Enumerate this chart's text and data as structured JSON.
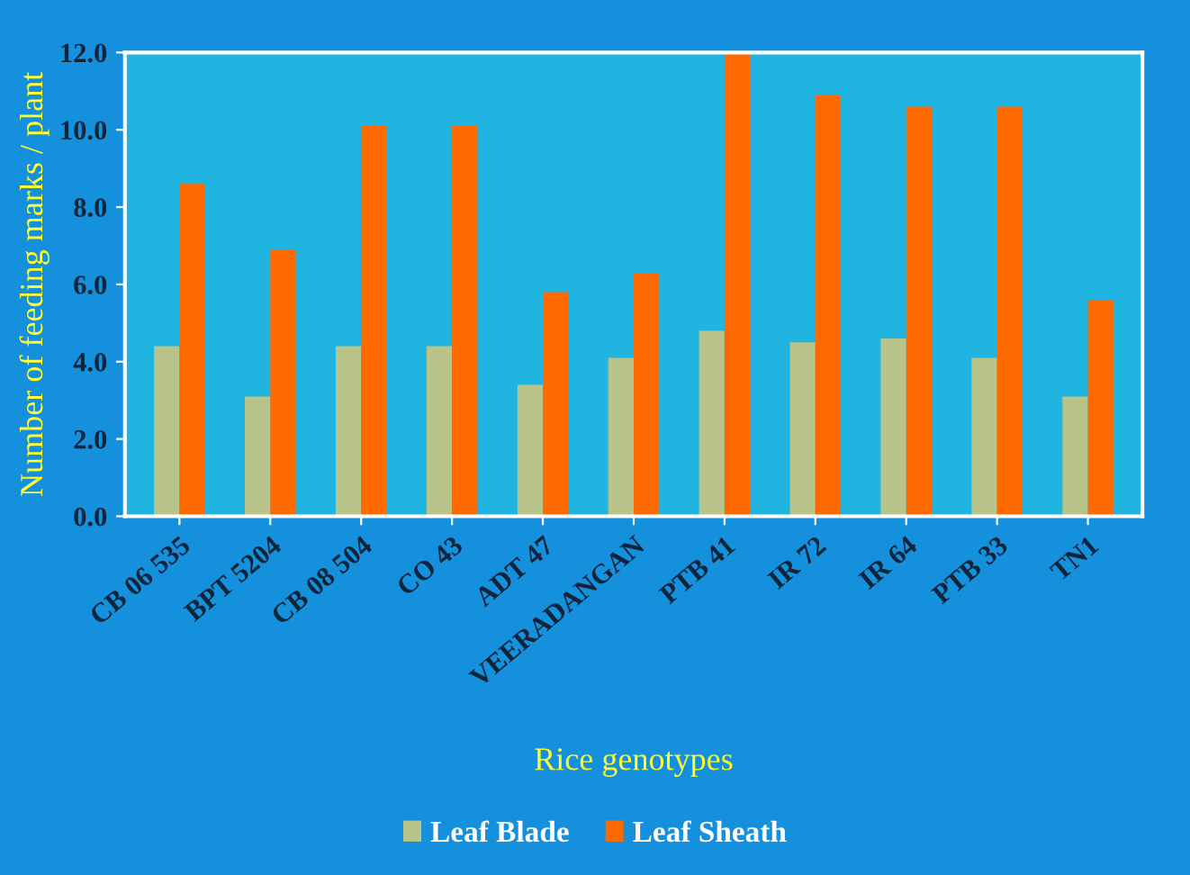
{
  "chart_data": {
    "type": "bar",
    "xlabel": "Rice genotypes",
    "ylabel": "Number of feeding marks / plant",
    "categories": [
      "CB 06 535",
      "BPT 5204",
      "CB 08 504",
      "CO 43",
      "ADT 47",
      "VEERADANGAN",
      "PTB 41",
      "IR 72",
      "IR 64",
      "PTB 33",
      "TN1"
    ],
    "series": [
      {
        "name": "Leaf Blade",
        "color": "#b8c48a",
        "values": [
          4.4,
          3.1,
          4.4,
          4.4,
          3.4,
          4.1,
          4.8,
          4.5,
          4.6,
          4.1,
          3.1
        ]
      },
      {
        "name": "Leaf Sheath",
        "color": "#ff6a00",
        "values": [
          8.6,
          6.9,
          10.1,
          10.1,
          5.8,
          6.3,
          12.0,
          10.9,
          10.6,
          10.6,
          5.6
        ]
      }
    ],
    "ylim": [
      0,
      12
    ],
    "yticks": [
      {
        "value": 0,
        "label": "0.0"
      },
      {
        "value": 2,
        "label": "2.0"
      },
      {
        "value": 4,
        "label": "4.0"
      },
      {
        "value": 6,
        "label": "6.0"
      },
      {
        "value": 8,
        "label": "8.0"
      },
      {
        "value": 10,
        "label": "10.0"
      },
      {
        "value": 12,
        "label": "12.0"
      }
    ],
    "grid": false,
    "legend": "bottom"
  }
}
